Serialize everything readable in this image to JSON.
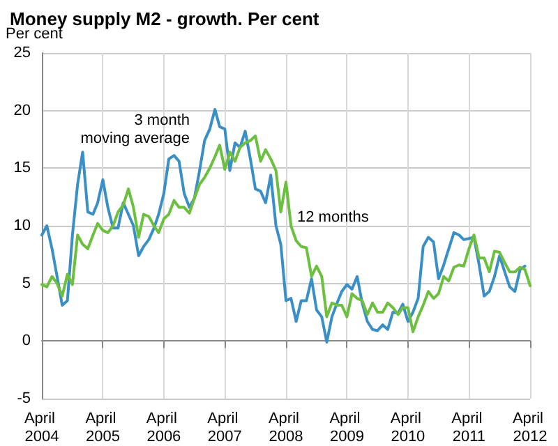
{
  "chart_data": {
    "type": "line",
    "title": "Money supply M2 - growth. Per cent",
    "ylabel": "Per cent",
    "x": [
      "2004-04",
      "2004-05",
      "2004-06",
      "2004-07",
      "2004-08",
      "2004-09",
      "2004-10",
      "2004-11",
      "2004-12",
      "2005-01",
      "2005-02",
      "2005-03",
      "2005-04",
      "2005-05",
      "2005-06",
      "2005-07",
      "2005-08",
      "2005-09",
      "2005-10",
      "2005-11",
      "2005-12",
      "2006-01",
      "2006-02",
      "2006-03",
      "2006-04",
      "2006-05",
      "2006-06",
      "2006-07",
      "2006-08",
      "2006-09",
      "2006-10",
      "2006-11",
      "2006-12",
      "2007-01",
      "2007-02",
      "2007-03",
      "2007-04",
      "2007-05",
      "2007-06",
      "2007-07",
      "2007-08",
      "2007-09",
      "2007-10",
      "2007-11",
      "2007-12",
      "2008-01",
      "2008-02",
      "2008-03",
      "2008-04",
      "2008-05",
      "2008-06",
      "2008-07",
      "2008-08",
      "2008-09",
      "2008-10",
      "2008-11",
      "2008-12",
      "2009-01",
      "2009-02",
      "2009-03",
      "2009-04",
      "2009-05",
      "2009-06",
      "2009-07",
      "2009-08",
      "2009-09",
      "2009-10",
      "2009-11",
      "2009-12",
      "2010-01",
      "2010-02",
      "2010-03",
      "2010-04",
      "2010-05",
      "2010-06",
      "2010-07",
      "2010-08",
      "2010-09",
      "2010-10",
      "2010-11",
      "2010-12",
      "2011-01",
      "2011-02",
      "2011-03",
      "2011-04",
      "2011-05",
      "2011-06",
      "2011-07",
      "2011-08",
      "2011-09",
      "2011-10",
      "2011-11",
      "2011-12",
      "2012-01",
      "2012-02",
      "2012-03",
      "2012-04"
    ],
    "series": [
      {
        "color": "#3a8fc7",
        "values": [
          9.2,
          10.0,
          8.0,
          5.6,
          3.1,
          3.5,
          9.2,
          13.6,
          16.4,
          11.2,
          11.0,
          12.0,
          14.0,
          11.6,
          9.8,
          9.8,
          12.0,
          11.0,
          10.0,
          7.4,
          8.2,
          8.8,
          9.8,
          11.0,
          12.8,
          15.8,
          16.1,
          15.6,
          12.8,
          11.6,
          12.4,
          14.8,
          17.4,
          18.4,
          20.1,
          18.6,
          18.4,
          14.8,
          17.2,
          16.8,
          18.2,
          15.8,
          13.2,
          13.0,
          12.0,
          14.4,
          10.0,
          8.4,
          3.5,
          3.7,
          1.7,
          3.5,
          3.5,
          5.4,
          2.7,
          2.1,
          -0.1,
          2.1,
          3.3,
          4.3,
          4.9,
          4.5,
          5.6,
          3.3,
          1.7,
          1.0,
          0.9,
          1.4,
          1.0,
          2.5,
          2.4,
          3.2,
          1.7,
          2.5,
          3.7,
          8.2,
          9.0,
          8.6,
          5.4,
          6.6,
          8.0,
          9.4,
          9.2,
          8.8,
          8.9,
          9.0,
          6.6,
          3.9,
          4.3,
          5.6,
          7.4,
          6.0,
          4.7,
          4.3,
          6.2,
          6.5,
          null
        ]
      },
      {
        "color": "#6cbf3f",
        "values": [
          4.9,
          4.7,
          5.6,
          5.0,
          3.9,
          5.8,
          4.9,
          9.2,
          8.4,
          8.0,
          9.2,
          10.2,
          9.6,
          9.4,
          10.0,
          11.2,
          11.8,
          13.2,
          11.6,
          9.0,
          11.0,
          10.8,
          10.0,
          9.4,
          10.6,
          11.0,
          12.2,
          11.6,
          11.6,
          11.1,
          12.4,
          13.6,
          14.2,
          15.0,
          16.0,
          17.0,
          14.9,
          16.4,
          15.6,
          16.8,
          17.2,
          17.4,
          17.8,
          15.6,
          16.6,
          15.8,
          14.8,
          11.2,
          13.8,
          10.0,
          8.7,
          8.2,
          8.1,
          5.6,
          6.5,
          5.6,
          2.1,
          3.3,
          3.1,
          3.1,
          2.1,
          4.1,
          3.7,
          3.5,
          2.3,
          3.3,
          2.5,
          2.5,
          3.3,
          2.9,
          2.3,
          2.9,
          2.9,
          0.8,
          2.1,
          3.1,
          4.3,
          3.7,
          4.1,
          5.6,
          5.2,
          6.4,
          6.6,
          6.5,
          8.0,
          9.2,
          7.2,
          7.2,
          6.0,
          7.8,
          7.7,
          6.8,
          6.0,
          6.0,
          6.4,
          6.2,
          4.8
        ]
      }
    ],
    "xlim": [
      "2004-04",
      "2012-04"
    ],
    "xticks": [
      {
        "value": "2004-04",
        "label": "April 2004"
      },
      {
        "value": "2005-04",
        "label": "April 2005"
      },
      {
        "value": "2006-04",
        "label": "April 2006"
      },
      {
        "value": "2007-04",
        "label": "April 2007"
      },
      {
        "value": "2008-04",
        "label": "April 2008"
      },
      {
        "value": "2009-04",
        "label": "April 2009"
      },
      {
        "value": "2010-04",
        "label": "April 2010"
      },
      {
        "value": "2011-04",
        "label": "April 2011"
      },
      {
        "value": "2012-04",
        "label": "April 2012"
      }
    ],
    "ylim": [
      -5,
      25
    ],
    "yticks": [
      -5,
      0,
      5,
      10,
      15,
      20,
      25
    ],
    "annotations": [
      "3 month\nmoving average",
      "12 months"
    ],
    "grid": true,
    "marker": "none",
    "line_style": "solid"
  }
}
